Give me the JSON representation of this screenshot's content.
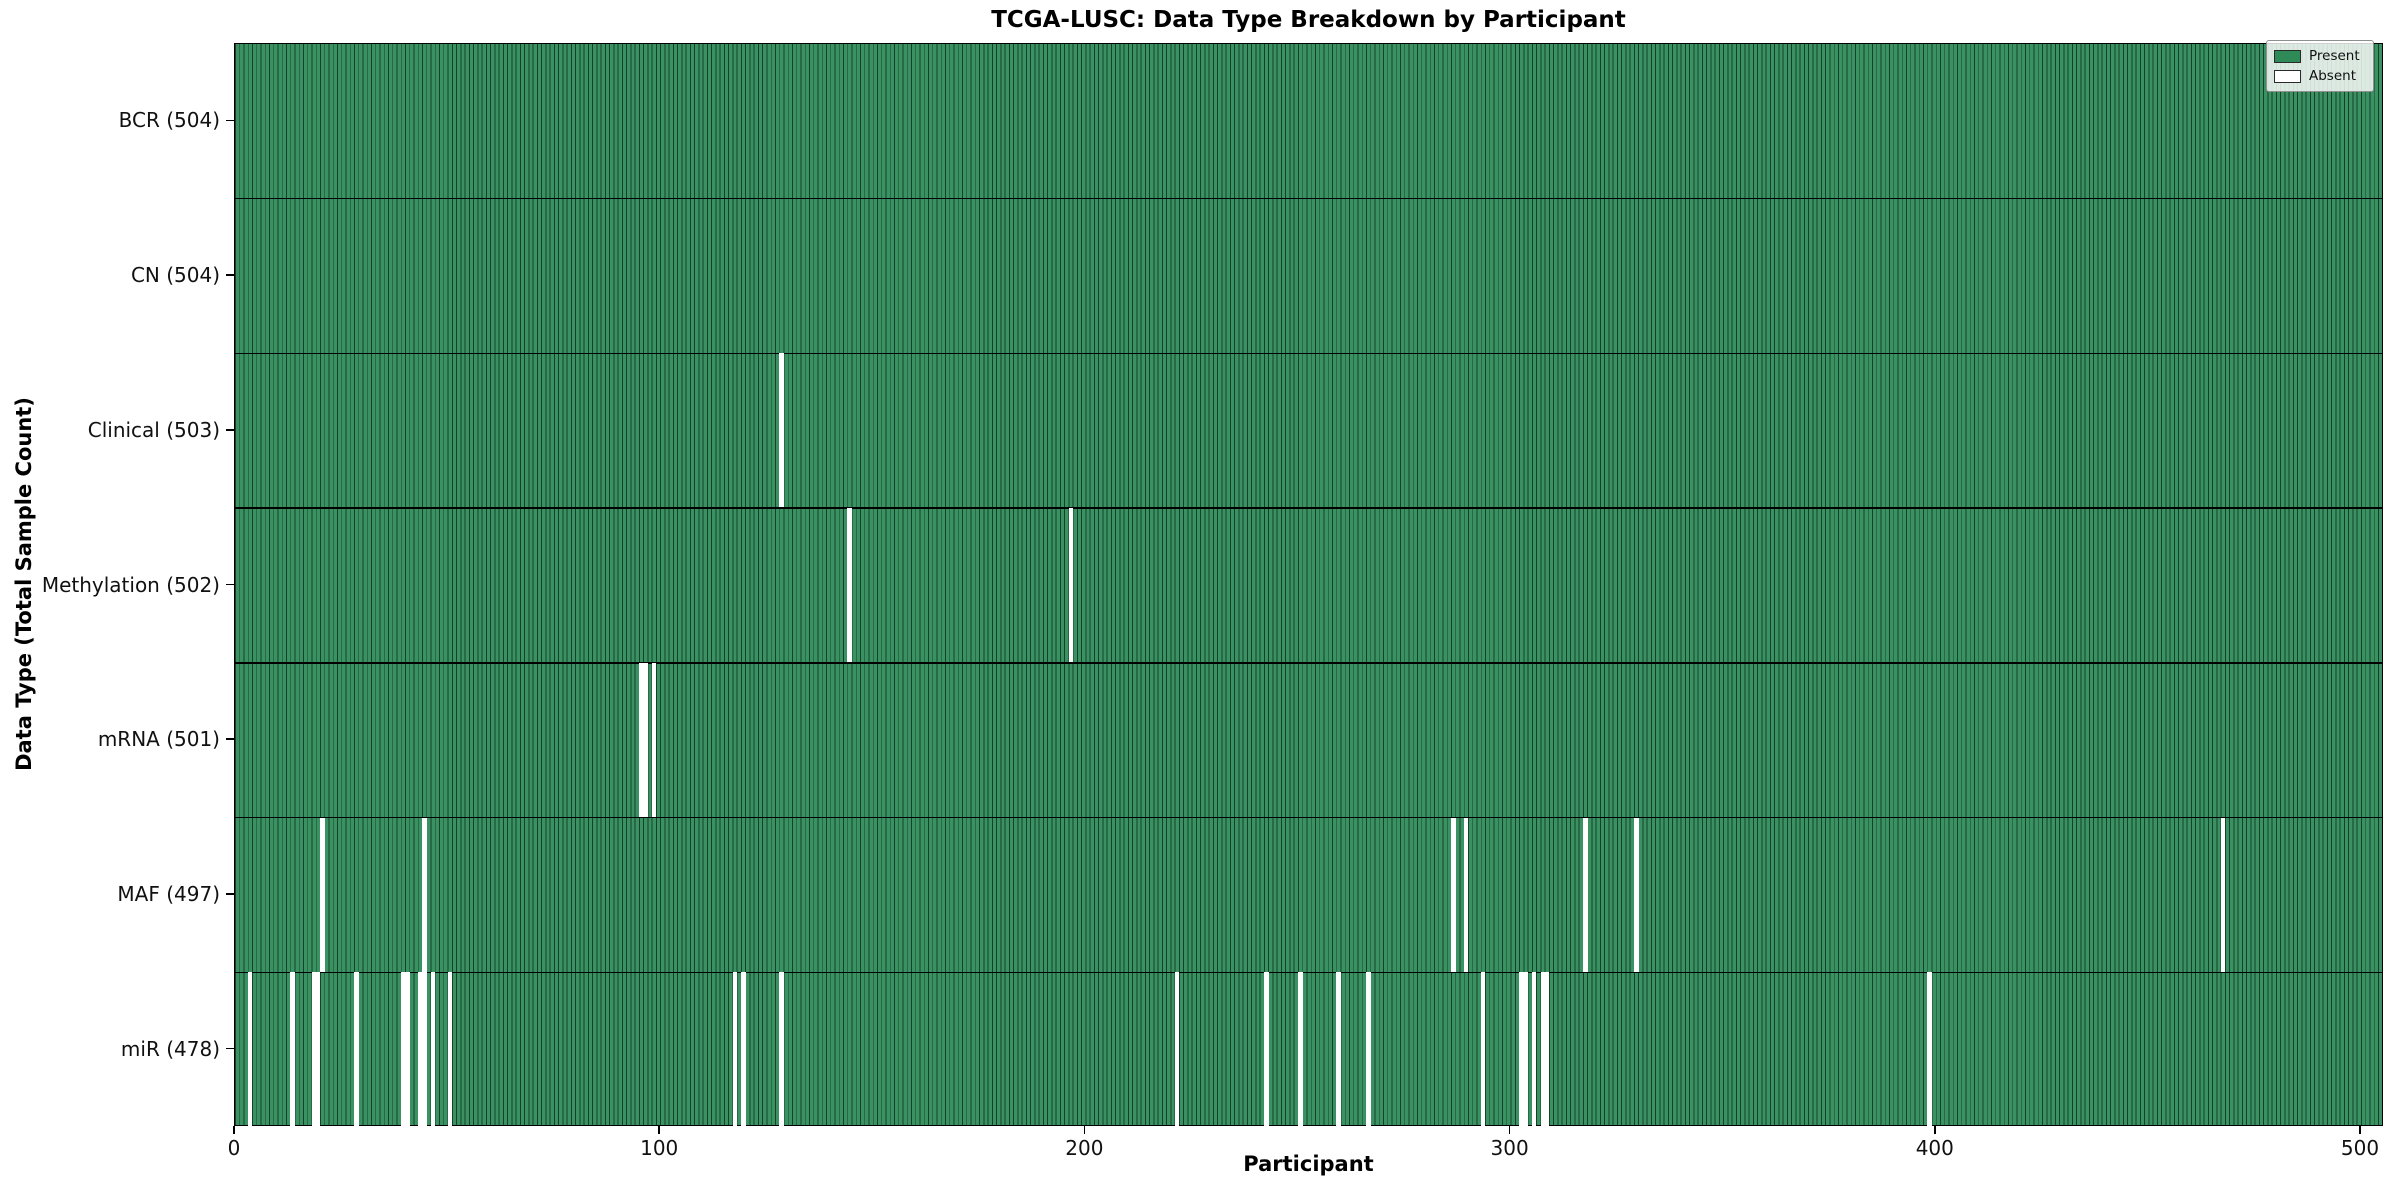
{
  "title": "TCGA-LUSC: Data Type Breakdown by Participant",
  "chart_data": {
    "type": "heatmap",
    "title": "TCGA-LUSC: Data Type Breakdown by Participant",
    "xlabel": "Participant",
    "ylabel": "Data Type (Total Sample Count)",
    "x_ticks": [
      0,
      100,
      200,
      300,
      400,
      500
    ],
    "xlim": [
      0,
      505
    ],
    "n_participants": 504,
    "grid": false,
    "legend": {
      "position": "upper right",
      "entries": [
        {
          "label": "Present",
          "color": "#2E8B57"
        },
        {
          "label": "Absent",
          "color": "#FFFFFF"
        }
      ]
    },
    "rows": [
      {
        "label": "BCR (504)",
        "data_type": "BCR",
        "total": 504,
        "absent_participants": []
      },
      {
        "label": "CN (504)",
        "data_type": "CN",
        "total": 504,
        "absent_participants": []
      },
      {
        "label": "Clinical (503)",
        "data_type": "Clinical",
        "total": 503,
        "absent_participants": [
          128
        ]
      },
      {
        "label": "Methylation (502)",
        "data_type": "Methylation",
        "total": 502,
        "absent_participants": [
          144,
          196
        ]
      },
      {
        "label": "mRNA (501)",
        "data_type": "mRNA",
        "total": 501,
        "absent_participants": [
          95,
          96,
          98
        ]
      },
      {
        "label": "MAF (497)",
        "data_type": "MAF",
        "total": 497,
        "absent_participants": [
          20,
          44,
          286,
          289,
          317,
          329,
          467
        ]
      },
      {
        "label": "miR (478)",
        "data_type": "miR",
        "total": 478,
        "absent_participants": [
          3,
          13,
          18,
          19,
          28,
          39,
          40,
          43,
          44,
          46,
          50,
          117,
          119,
          128,
          221,
          242,
          250,
          259,
          266,
          293,
          302,
          303,
          305,
          307,
          308,
          398
        ]
      }
    ],
    "colors": {
      "present_fill": "#3A9262",
      "bar_edge": "#17402B",
      "present_legend": "#2E8B57",
      "absent": "#FFFFFF",
      "axis": "#000000"
    }
  }
}
